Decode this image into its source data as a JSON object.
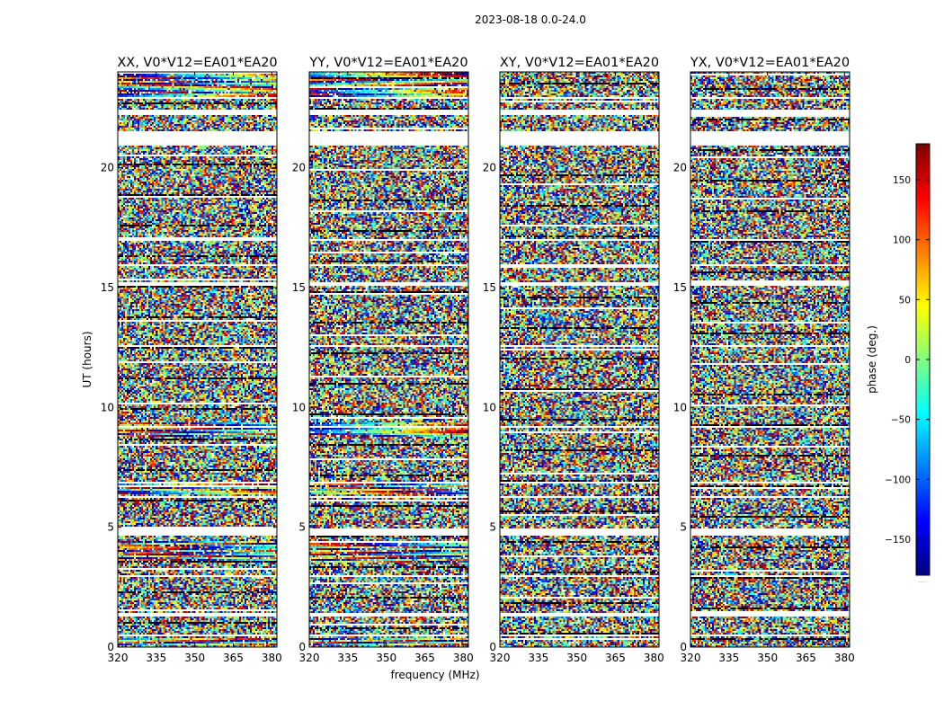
{
  "suptitle": "2023-08-18 0.0-24.0",
  "chart_data": {
    "type": "heatmap",
    "description_value": "phase vs frequency and UT for baseline EA01*EA20",
    "panels": [
      {
        "title": "XX, V0*V12=EA01*EA20",
        "pol": "XX",
        "coherent": true
      },
      {
        "title": "YY, V0*V12=EA01*EA20",
        "pol": "YY",
        "coherent": true
      },
      {
        "title": "XY, V0*V12=EA01*EA20",
        "pol": "XY",
        "coherent": false
      },
      {
        "title": "YX, V0*V12=EA01*EA20",
        "pol": "YX",
        "coherent": false
      }
    ],
    "xlabel": "frequency (MHz)",
    "ylabel": "UT (hours)",
    "xlim": [
      320,
      382
    ],
    "ylim": [
      0,
      24
    ],
    "xticks": [
      320,
      335,
      350,
      365,
      380
    ],
    "yticks": [
      0,
      5,
      10,
      15,
      20
    ],
    "colorbar": {
      "label": "phase (deg.)",
      "range": [
        -180,
        180
      ],
      "ticks": [
        150,
        100,
        50,
        0,
        -50,
        -100,
        -150
      ],
      "tick_labels": [
        "150",
        "100",
        "50",
        "0",
        "−50",
        "−100",
        "−150"
      ],
      "colormap": "jet",
      "footer": "....."
    },
    "flagged_ut_ranges": [
      [
        0.45,
        0.55
      ],
      [
        1.25,
        1.4
      ],
      [
        2.9,
        3.0
      ],
      [
        4.65,
        4.95
      ],
      [
        5.15,
        5.2
      ],
      [
        6.25,
        6.3
      ],
      [
        6.85,
        6.9
      ],
      [
        9.15,
        9.2
      ],
      [
        10.1,
        10.15
      ],
      [
        12.5,
        12.6
      ],
      [
        15.05,
        15.2
      ],
      [
        15.9,
        15.95
      ],
      [
        16.95,
        17.0
      ],
      [
        18.35,
        18.4
      ],
      [
        19.55,
        19.6
      ],
      [
        20.95,
        21.55
      ],
      [
        22.2,
        22.4
      ],
      [
        22.85,
        22.95
      ]
    ],
    "coherent_ut_ranges": [
      [
        0.05,
        0.4
      ],
      [
        3.5,
        4.4
      ],
      [
        6.35,
        6.8
      ],
      [
        8.8,
        9.4
      ],
      [
        22.9,
        24.0
      ]
    ]
  }
}
